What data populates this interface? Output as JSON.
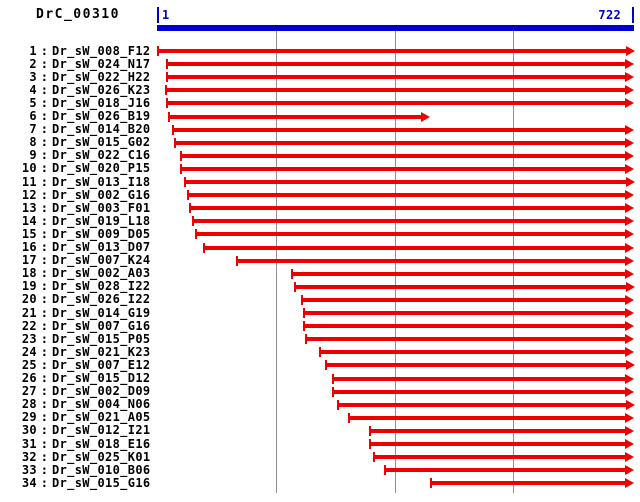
{
  "header": {
    "title": "DrC_00310",
    "ruler": {
      "start_label": "1",
      "end_label": "722"
    }
  },
  "colors": {
    "arrow_red": "#ee0000",
    "ruler_blue": "#0000cc",
    "grid_gray": "#909090",
    "text_black": "#000000"
  },
  "chart_data": {
    "type": "bar",
    "subtype": "horizontal-interval-alignment-map",
    "title": "DrC_00310",
    "xlabel": "",
    "ylabel": "",
    "x_axis": {
      "min": 1,
      "max": 722,
      "tick_labels": [
        "1",
        "722"
      ],
      "gridline_positions": [
        181,
        361,
        541
      ],
      "grid": true
    },
    "reads": [
      {
        "index": 1,
        "name": "Dr_sW_008_F12",
        "start": 1,
        "end": 722
      },
      {
        "index": 2,
        "name": "Dr_sW_024_N17",
        "start": 15,
        "end": 722
      },
      {
        "index": 3,
        "name": "Dr_sW_022_H22",
        "start": 15,
        "end": 722
      },
      {
        "index": 4,
        "name": "Dr_sW_026_K23",
        "start": 14,
        "end": 722
      },
      {
        "index": 5,
        "name": "Dr_sW_018_J16",
        "start": 16,
        "end": 722
      },
      {
        "index": 6,
        "name": "Dr_sW_026_B19",
        "start": 19,
        "end": 412
      },
      {
        "index": 7,
        "name": "Dr_sW_014_B20",
        "start": 25,
        "end": 722
      },
      {
        "index": 8,
        "name": "Dr_sW_015_G02",
        "start": 28,
        "end": 722
      },
      {
        "index": 9,
        "name": "Dr_sW_022_C16",
        "start": 36,
        "end": 722
      },
      {
        "index": 10,
        "name": "Dr_sW_020_P15",
        "start": 36,
        "end": 722
      },
      {
        "index": 11,
        "name": "Dr_sW_013_I18",
        "start": 42,
        "end": 722
      },
      {
        "index": 12,
        "name": "Dr_sW_002_G16",
        "start": 47,
        "end": 722
      },
      {
        "index": 13,
        "name": "Dr_sW_003_F01",
        "start": 51,
        "end": 722
      },
      {
        "index": 14,
        "name": "Dr_sW_019_L18",
        "start": 55,
        "end": 722
      },
      {
        "index": 15,
        "name": "Dr_sW_009_D05",
        "start": 60,
        "end": 722
      },
      {
        "index": 16,
        "name": "Dr_sW_013_D07",
        "start": 72,
        "end": 722
      },
      {
        "index": 17,
        "name": "Dr_sW_007_K24",
        "start": 122,
        "end": 722
      },
      {
        "index": 18,
        "name": "Dr_sW_002_A03",
        "start": 205,
        "end": 722
      },
      {
        "index": 19,
        "name": "Dr_sW_028_I22",
        "start": 209,
        "end": 722
      },
      {
        "index": 20,
        "name": "Dr_sW_026_I22",
        "start": 220,
        "end": 722
      },
      {
        "index": 21,
        "name": "Dr_sW_014_G19",
        "start": 224,
        "end": 722
      },
      {
        "index": 22,
        "name": "Dr_sW_007_G16",
        "start": 224,
        "end": 722
      },
      {
        "index": 23,
        "name": "Dr_sW_015_P05",
        "start": 227,
        "end": 722
      },
      {
        "index": 24,
        "name": "Dr_sW_021_K23",
        "start": 247,
        "end": 722
      },
      {
        "index": 25,
        "name": "Dr_sW_007_E12",
        "start": 256,
        "end": 722
      },
      {
        "index": 26,
        "name": "Dr_sW_015_D12",
        "start": 267,
        "end": 722
      },
      {
        "index": 27,
        "name": "Dr_sW_002_D09",
        "start": 268,
        "end": 722
      },
      {
        "index": 28,
        "name": "Dr_sW_004_N06",
        "start": 275,
        "end": 722
      },
      {
        "index": 29,
        "name": "Dr_sW_021_A05",
        "start": 292,
        "end": 722
      },
      {
        "index": 30,
        "name": "Dr_sW_012_I21",
        "start": 323,
        "end": 722
      },
      {
        "index": 31,
        "name": "Dr_sW_018_E16",
        "start": 323,
        "end": 722
      },
      {
        "index": 32,
        "name": "Dr_sW_025_K01",
        "start": 329,
        "end": 722
      },
      {
        "index": 33,
        "name": "Dr_sW_010_B06",
        "start": 347,
        "end": 722
      },
      {
        "index": 34,
        "name": "Dr_sW_015_G16",
        "start": 416,
        "end": 722
      }
    ]
  }
}
